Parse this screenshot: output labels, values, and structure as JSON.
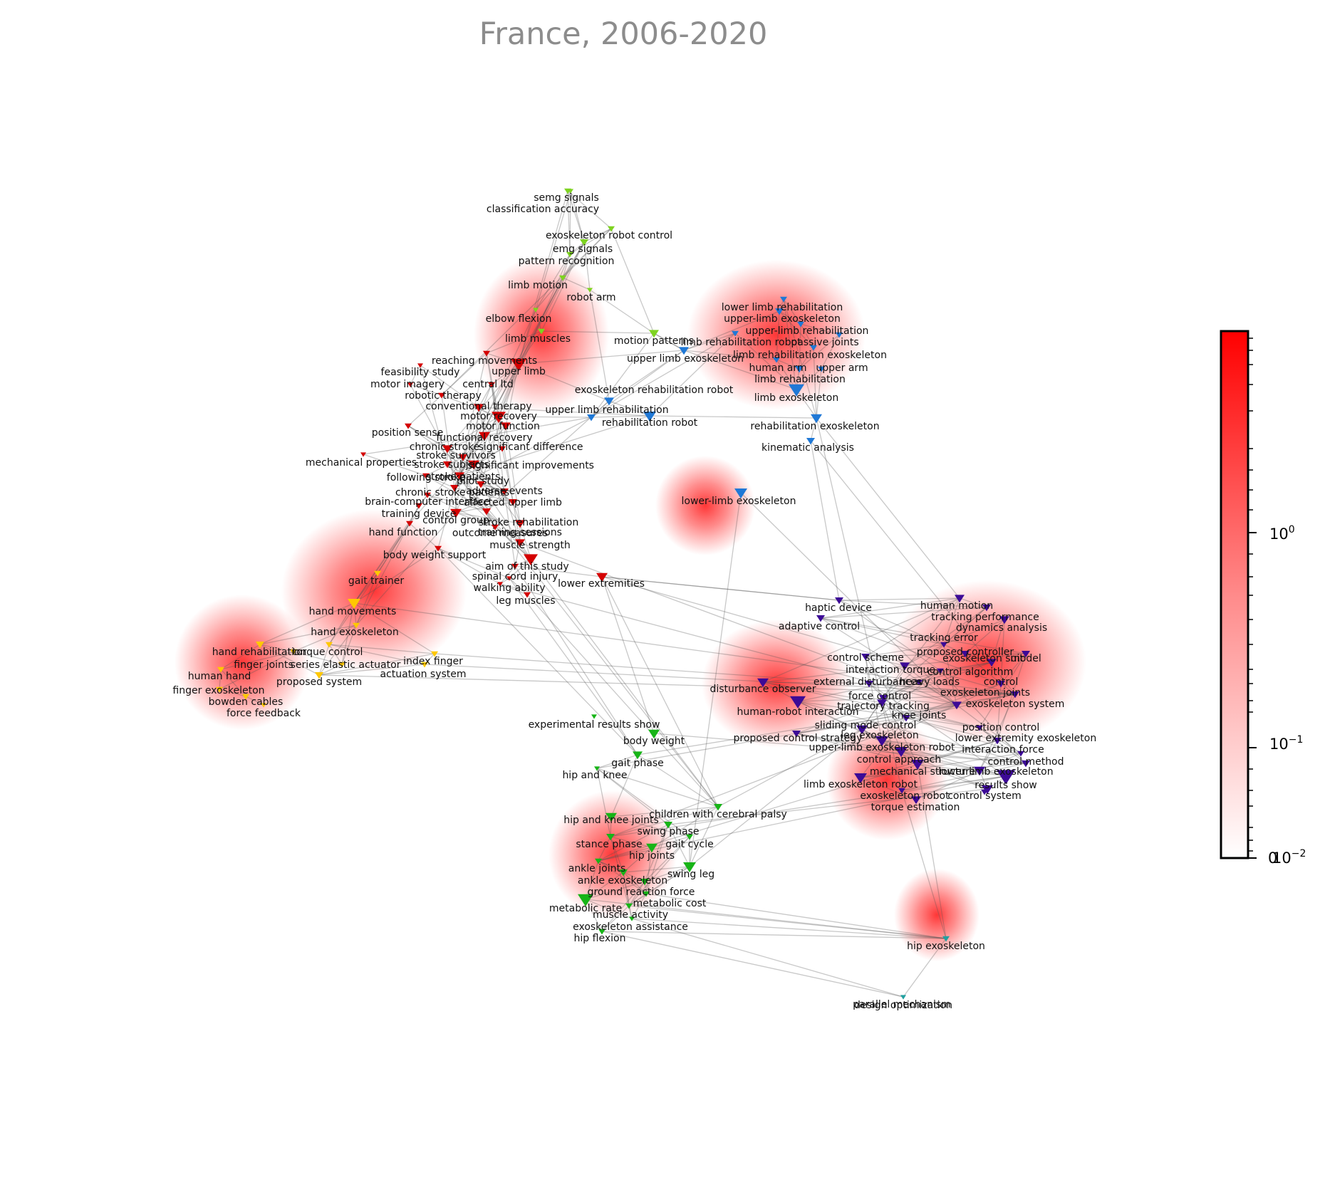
{
  "title": "France, 2006-2020",
  "colorbar": {
    "ticks": [
      {
        "base": "10",
        "exp": "0"
      },
      {
        "base": "10",
        "exp": "−1"
      },
      {
        "base": "0",
        "exp": ""
      },
      {
        "base": "10",
        "exp": "−2"
      }
    ],
    "colors": {
      "high": "#ff0000",
      "low": "#ffffff",
      "frame": "#000000"
    }
  },
  "cluster_colors": {
    "red": "#d40000",
    "lime": "#7ed321",
    "blue": "#1f78d6",
    "yellow": "#ffc800",
    "purple": "#3c0a96",
    "green": "#17b417",
    "teal": "#20a0a0"
  },
  "nodes": [
    {
      "label": "semg signals",
      "cluster": "lime"
    },
    {
      "label": "classification accuracy",
      "cluster": "lime"
    },
    {
      "label": "exoskeleton robot control",
      "cluster": "lime"
    },
    {
      "label": "emg signals",
      "cluster": "lime"
    },
    {
      "label": "pattern recognition",
      "cluster": "lime"
    },
    {
      "label": "limb motion",
      "cluster": "lime"
    },
    {
      "label": "robot arm",
      "cluster": "lime"
    },
    {
      "label": "elbow flexion",
      "cluster": "lime"
    },
    {
      "label": "limb muscles",
      "cluster": "lime"
    },
    {
      "label": "motion patterns",
      "cluster": "lime"
    },
    {
      "label": "lower limb rehabilitation",
      "cluster": "blue"
    },
    {
      "label": "upper-limb exoskeleton",
      "cluster": "blue"
    },
    {
      "label": "upper-limb rehabilitation",
      "cluster": "blue"
    },
    {
      "label": "limb rehabilitation robot",
      "cluster": "blue"
    },
    {
      "label": "passive joints",
      "cluster": "blue"
    },
    {
      "label": "upper limb exoskeleton",
      "cluster": "blue"
    },
    {
      "label": "limb rehabilitation exoskeleton",
      "cluster": "blue"
    },
    {
      "label": "human arm",
      "cluster": "blue"
    },
    {
      "label": "upper arm",
      "cluster": "blue"
    },
    {
      "label": "limb rehabilitation",
      "cluster": "blue"
    },
    {
      "label": "limb exoskeleton",
      "cluster": "blue"
    },
    {
      "label": "exoskeleton rehabilitation robot",
      "cluster": "blue"
    },
    {
      "label": "upper limb rehabilitation",
      "cluster": "blue"
    },
    {
      "label": "rehabilitation robot",
      "cluster": "blue"
    },
    {
      "label": "rehabilitation exoskeleton",
      "cluster": "blue"
    },
    {
      "label": "kinematic analysis",
      "cluster": "blue"
    },
    {
      "label": "lower-limb exoskeleton",
      "cluster": "blue"
    },
    {
      "label": "reaching movements",
      "cluster": "red"
    },
    {
      "label": "feasibility study",
      "cluster": "red"
    },
    {
      "label": "upper limb",
      "cluster": "red"
    },
    {
      "label": "motor imagery",
      "cluster": "red"
    },
    {
      "label": "central ltd",
      "cluster": "red"
    },
    {
      "label": "robotic therapy",
      "cluster": "red"
    },
    {
      "label": "conventional therapy",
      "cluster": "red"
    },
    {
      "label": "motor recovery",
      "cluster": "red"
    },
    {
      "label": "motor function",
      "cluster": "red"
    },
    {
      "label": "position sense",
      "cluster": "red"
    },
    {
      "label": "functional recovery",
      "cluster": "red"
    },
    {
      "label": "chronic stroke",
      "cluster": "red"
    },
    {
      "label": "significant difference",
      "cluster": "red"
    },
    {
      "label": "stroke survivors",
      "cluster": "red"
    },
    {
      "label": "mechanical properties",
      "cluster": "red"
    },
    {
      "label": "stroke subjects",
      "cluster": "red"
    },
    {
      "label": "significant improvements",
      "cluster": "red"
    },
    {
      "label": "stroke patients",
      "cluster": "red"
    },
    {
      "label": "following stroke",
      "cluster": "red"
    },
    {
      "label": "pilot study",
      "cluster": "red"
    },
    {
      "label": "chronic stroke patients",
      "cluster": "red"
    },
    {
      "label": "adverse events",
      "cluster": "red"
    },
    {
      "label": "brain-computer interface",
      "cluster": "red"
    },
    {
      "label": "affected upper limb",
      "cluster": "red"
    },
    {
      "label": "training device",
      "cluster": "red"
    },
    {
      "label": "control group",
      "cluster": "red"
    },
    {
      "label": "stroke rehabilitation",
      "cluster": "red"
    },
    {
      "label": "training sessions",
      "cluster": "red"
    },
    {
      "label": "hand function",
      "cluster": "red"
    },
    {
      "label": "outcome measures",
      "cluster": "red"
    },
    {
      "label": "muscle strength",
      "cluster": "red"
    },
    {
      "label": "body weight support",
      "cluster": "red"
    },
    {
      "label": "aim of this study",
      "cluster": "red"
    },
    {
      "label": "spinal cord injury",
      "cluster": "red"
    },
    {
      "label": "walking ability",
      "cluster": "red"
    },
    {
      "label": "leg muscles",
      "cluster": "red"
    },
    {
      "label": "lower extremities",
      "cluster": "red"
    },
    {
      "label": "gait trainer",
      "cluster": "red"
    },
    {
      "label": "hand movements",
      "cluster": "yellow"
    },
    {
      "label": "hand exoskeleton",
      "cluster": "yellow"
    },
    {
      "label": "hand rehabilitation",
      "cluster": "yellow"
    },
    {
      "label": "torque control",
      "cluster": "yellow"
    },
    {
      "label": "finger joints",
      "cluster": "yellow"
    },
    {
      "label": "series elastic actuator",
      "cluster": "yellow"
    },
    {
      "label": "index finger",
      "cluster": "yellow"
    },
    {
      "label": "human hand",
      "cluster": "yellow"
    },
    {
      "label": "actuation system",
      "cluster": "yellow"
    },
    {
      "label": "proposed system",
      "cluster": "yellow"
    },
    {
      "label": "finger exoskeleton",
      "cluster": "yellow"
    },
    {
      "label": "bowden cables",
      "cluster": "yellow"
    },
    {
      "label": "force feedback",
      "cluster": "yellow"
    },
    {
      "label": "haptic device",
      "cluster": "yellow"
    },
    {
      "label": "human motion",
      "cluster": "purple"
    },
    {
      "label": "tracking performance",
      "cluster": "purple"
    },
    {
      "label": "adaptive control",
      "cluster": "purple"
    },
    {
      "label": "dynamics analysis",
      "cluster": "purple"
    },
    {
      "label": "tracking error",
      "cluster": "purple"
    },
    {
      "label": "proposed controller",
      "cluster": "purple"
    },
    {
      "label": "control scheme",
      "cluster": "purple"
    },
    {
      "label": "exoskeleton suit",
      "cluster": "purple"
    },
    {
      "label": "model",
      "cluster": "purple"
    },
    {
      "label": "interaction torque",
      "cluster": "purple"
    },
    {
      "label": "control algorithm",
      "cluster": "purple"
    },
    {
      "label": "external disturbances",
      "cluster": "purple"
    },
    {
      "label": "heavy loads",
      "cluster": "purple"
    },
    {
      "label": "control",
      "cluster": "purple"
    },
    {
      "label": "disturbance observer",
      "cluster": "purple"
    },
    {
      "label": "force control",
      "cluster": "purple"
    },
    {
      "label": "exoskeleton joints",
      "cluster": "purple"
    },
    {
      "label": "trajectory tracking",
      "cluster": "purple"
    },
    {
      "label": "exoskeleton system",
      "cluster": "purple"
    },
    {
      "label": "human-robot interaction",
      "cluster": "purple"
    },
    {
      "label": "knee joints",
      "cluster": "purple"
    },
    {
      "label": "sliding mode control",
      "cluster": "purple"
    },
    {
      "label": "position control",
      "cluster": "purple"
    },
    {
      "label": "proposed control strategy",
      "cluster": "purple"
    },
    {
      "label": "leg exoskeleton",
      "cluster": "purple"
    },
    {
      "label": "lower extremity exoskeleton",
      "cluster": "purple"
    },
    {
      "label": "upper-limb exoskeleton robot",
      "cluster": "purple"
    },
    {
      "label": "interaction force",
      "cluster": "purple"
    },
    {
      "label": "control approach",
      "cluster": "purple"
    },
    {
      "label": "control method",
      "cluster": "purple"
    },
    {
      "label": "mechanical structure",
      "cluster": "purple"
    },
    {
      "label": "lower limb exoskeleton",
      "cluster": "purple"
    },
    {
      "label": "limb exoskeleton robot",
      "cluster": "purple"
    },
    {
      "label": "results show",
      "cluster": "purple"
    },
    {
      "label": "exoskeleton robot",
      "cluster": "purple"
    },
    {
      "label": "torque estimation",
      "cluster": "purple"
    },
    {
      "label": "control system",
      "cluster": "purple"
    },
    {
      "label": "experimental results show",
      "cluster": "purple"
    },
    {
      "label": "body weight",
      "cluster": "green"
    },
    {
      "label": "gait phase",
      "cluster": "green"
    },
    {
      "label": "hip and knee",
      "cluster": "green"
    },
    {
      "label": "children with cerebral palsy",
      "cluster": "green"
    },
    {
      "label": "hip and knee joints",
      "cluster": "green"
    },
    {
      "label": "swing phase",
      "cluster": "green"
    },
    {
      "label": "stance phase",
      "cluster": "green"
    },
    {
      "label": "gait cycle",
      "cluster": "green"
    },
    {
      "label": "hip joints",
      "cluster": "green"
    },
    {
      "label": "ankle joints",
      "cluster": "green"
    },
    {
      "label": "swing leg",
      "cluster": "green"
    },
    {
      "label": "ankle exoskeleton",
      "cluster": "green"
    },
    {
      "label": "ground reaction force",
      "cluster": "green"
    },
    {
      "label": "metabolic cost",
      "cluster": "green"
    },
    {
      "label": "metabolic rate",
      "cluster": "green"
    },
    {
      "label": "muscle activity",
      "cluster": "green"
    },
    {
      "label": "exoskeleton assistance",
      "cluster": "green"
    },
    {
      "label": "hip flexion",
      "cluster": "green"
    },
    {
      "label": "hip exoskeleton",
      "cluster": "green"
    },
    {
      "label": "parallel mechanism",
      "cluster": "teal"
    },
    {
      "label": "design optimization",
      "cluster": "teal"
    }
  ]
}
